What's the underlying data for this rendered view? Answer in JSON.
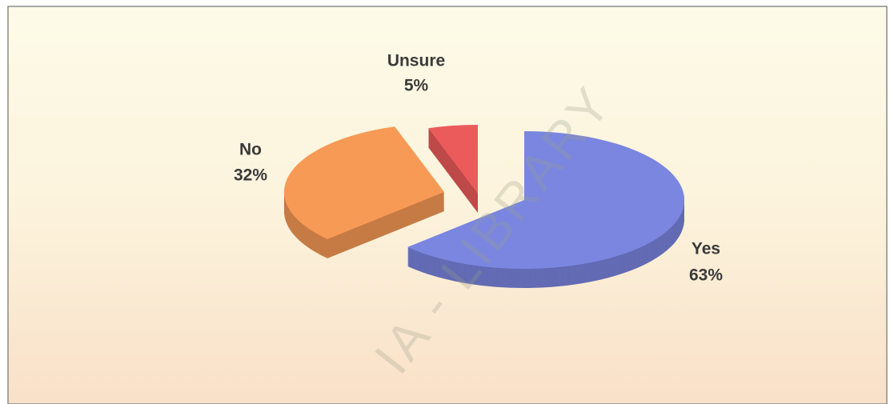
{
  "chart_data": {
    "type": "pie",
    "categories": [
      "Yes",
      "No",
      "Unsure"
    ],
    "values": [
      63,
      32,
      5
    ],
    "value_labels": [
      "63%",
      "32%",
      "5%"
    ],
    "series_colors": [
      "#7a86e0",
      "#f79a56",
      "#ec5b5b"
    ],
    "watermark": "IA - LIBRARY"
  }
}
